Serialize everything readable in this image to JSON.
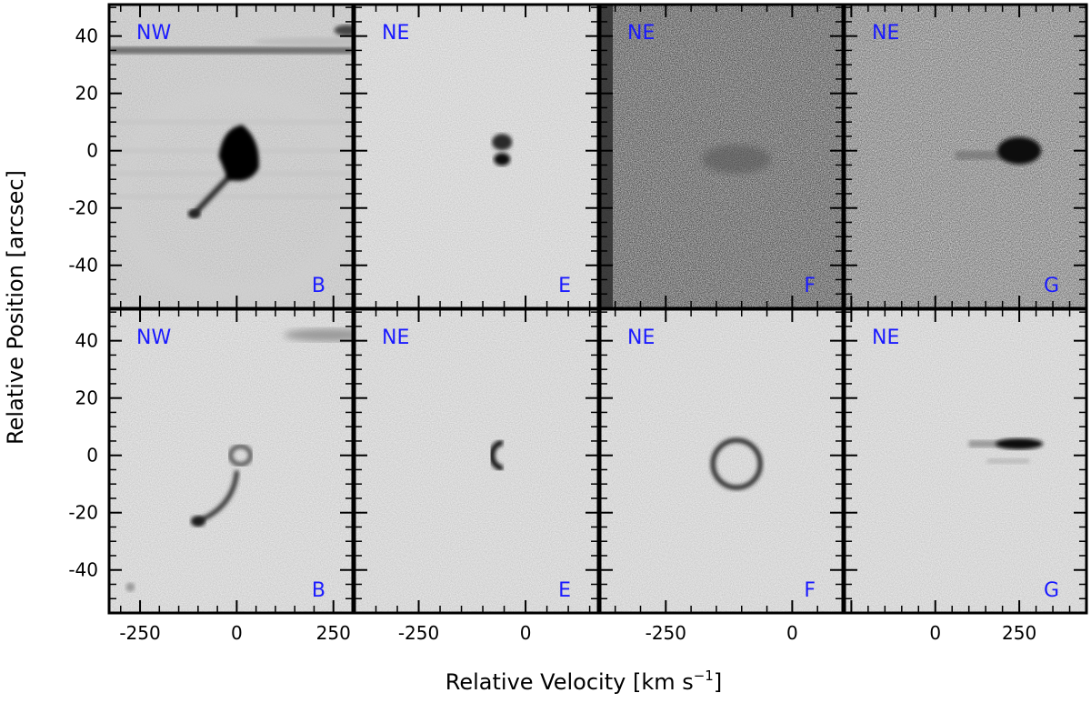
{
  "chart_data": {
    "type": "heatmap",
    "description_free": true,
    "xlabel_text": "Relative Velocity [km s",
    "xlabel_sup": "−1",
    "xlabel_close": "]",
    "ylabel": "Relative Position [arcsec]",
    "ylim": [
      -55,
      51
    ],
    "yticks": [
      40,
      20,
      0,
      -20,
      -40
    ],
    "ytick_labels": [
      "40",
      "20",
      "0",
      "-20",
      "-40"
    ],
    "colormap": "gray_r",
    "label_color": "#1a1aff",
    "columns": [
      {
        "xlim": [
          -330,
          300
        ],
        "xticks": [
          -250,
          0,
          250
        ],
        "xtick_labels": [
          "-250",
          "0",
          "250"
        ]
      },
      {
        "xlim": [
          -400,
          170
        ],
        "xticks": [
          -250,
          0
        ],
        "xtick_labels": [
          "-250",
          "0"
        ]
      },
      {
        "xlim": [
          -380,
          100
        ],
        "xticks": [
          -250,
          0
        ],
        "xtick_labels": [
          "-250",
          "0"
        ]
      },
      {
        "xlim": [
          -270,
          450
        ],
        "xticks": [
          0,
          250
        ],
        "xtick_labels": [
          "0",
          "250"
        ]
      }
    ],
    "panels": [
      {
        "row": "top",
        "col": 0,
        "corner_label": "NW",
        "region_label": "B"
      },
      {
        "row": "top",
        "col": 1,
        "corner_label": "NE",
        "region_label": "E"
      },
      {
        "row": "top",
        "col": 2,
        "corner_label": "NE",
        "region_label": "F"
      },
      {
        "row": "top",
        "col": 3,
        "corner_label": "NE",
        "region_label": "G"
      },
      {
        "row": "bottom",
        "col": 0,
        "corner_label": "NW",
        "region_label": "B"
      },
      {
        "row": "bottom",
        "col": 1,
        "corner_label": "NE",
        "region_label": "E"
      },
      {
        "row": "bottom",
        "col": 2,
        "corner_label": "NE",
        "region_label": "F"
      },
      {
        "row": "bottom",
        "col": 3,
        "corner_label": "NE",
        "region_label": "G"
      }
    ],
    "features": {
      "top_B": {
        "core_v": 10,
        "core_y": -2,
        "tail_to": [
          -110,
          -22
        ],
        "bright_band_y": 35
      },
      "top_E": {
        "blob_v": -60,
        "blob_y": 0
      },
      "top_F": {
        "emission_v": -110,
        "emission_y": -3
      },
      "top_G": {
        "emission_v": [
          60,
          280
        ],
        "emission_y": -2
      },
      "bottom_B": {
        "ring_v": 10,
        "ring_y": 0,
        "arc_to": [
          -100,
          -23
        ]
      },
      "bottom_E": {
        "arc_v": -65,
        "arc_y": -3
      },
      "bottom_F": {
        "ring_v": -110,
        "ring_y": -3
      },
      "bottom_G": {
        "streak_v": [
          100,
          280
        ],
        "streak_y": [
          4,
          -2
        ]
      }
    }
  }
}
